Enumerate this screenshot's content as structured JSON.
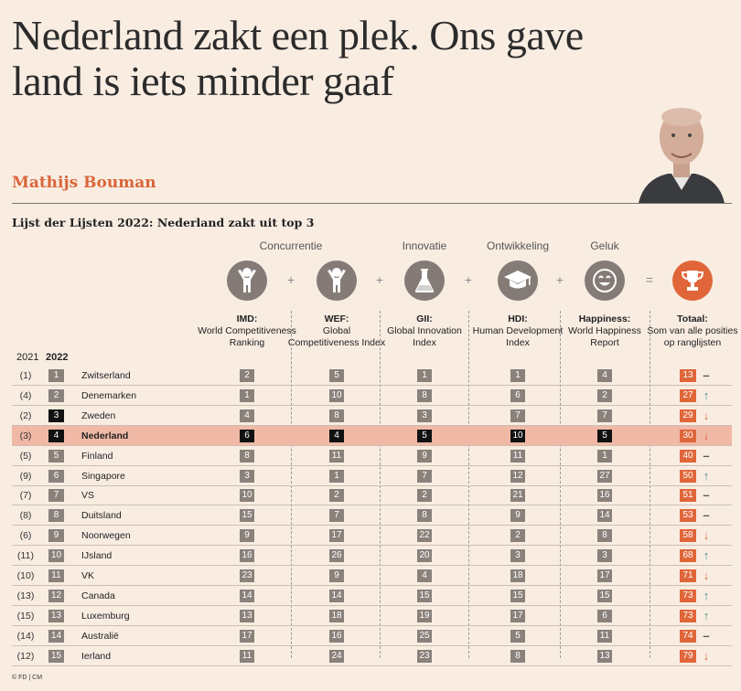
{
  "headline": "Nederland zakt een plek. Ons gave land is iets minder gaaf",
  "author": "Mathijs Bouman",
  "source": "© FD | CM",
  "chart_data": {
    "type": "table",
    "title": "Lijst der Lijsten 2022: Nederland zakt uit top 3",
    "categories": [
      "Concurrentie",
      "Innovatie",
      "Ontwikkeling",
      "Geluk"
    ],
    "operators": [
      "+",
      "+",
      "+",
      "+",
      "="
    ],
    "year_labels": [
      "2021",
      "2022"
    ],
    "columns": [
      {
        "key": "imd",
        "name": "IMD:",
        "desc": "World Competitiveness Ranking",
        "icon": "person-icon"
      },
      {
        "key": "wef",
        "name": "WEF:",
        "desc": "Global Competitiveness Index",
        "icon": "person-icon"
      },
      {
        "key": "gii",
        "name": "GII:",
        "desc": "Global Innovation Index",
        "icon": "flask-icon"
      },
      {
        "key": "hdi",
        "name": "HDI:",
        "desc": "Human Development Index",
        "icon": "graduation-cap-icon"
      },
      {
        "key": "happiness",
        "name": "Happiness:",
        "desc": "World Happiness Report",
        "icon": "smiley-icon"
      },
      {
        "key": "total",
        "name": "Totaal:",
        "desc": "Som van alle posities op ranglijsten",
        "icon": "trophy-icon"
      }
    ],
    "rows": [
      {
        "prev": "(1)",
        "rank": "1",
        "country": "Zwitserland",
        "imd": "2",
        "wef": "5",
        "gii": "1",
        "hdi": "1",
        "happiness": "4",
        "total": "13",
        "trend": "same"
      },
      {
        "prev": "(4)",
        "rank": "2",
        "country": "Denemarken",
        "imd": "1",
        "wef": "10",
        "gii": "8",
        "hdi": "6",
        "happiness": "2",
        "total": "27",
        "trend": "up"
      },
      {
        "prev": "(2)",
        "rank": "3",
        "country": "Zweden",
        "imd": "4",
        "wef": "8",
        "gii": "3",
        "hdi": "7",
        "happiness": "7",
        "total": "29",
        "trend": "down"
      },
      {
        "prev": "(3)",
        "rank": "4",
        "country": "Nederland",
        "imd": "6",
        "wef": "4",
        "gii": "5",
        "hdi": "10",
        "happiness": "5",
        "total": "30",
        "trend": "down",
        "highlight": true
      },
      {
        "prev": "(5)",
        "rank": "5",
        "country": "Finland",
        "imd": "8",
        "wef": "11",
        "gii": "9",
        "hdi": "11",
        "happiness": "1",
        "total": "40",
        "trend": "same"
      },
      {
        "prev": "(9)",
        "rank": "6",
        "country": "Singapore",
        "imd": "3",
        "wef": "1",
        "gii": "7",
        "hdi": "12",
        "happiness": "27",
        "total": "50",
        "trend": "up"
      },
      {
        "prev": "(7)",
        "rank": "7",
        "country": "VS",
        "imd": "10",
        "wef": "2",
        "gii": "2",
        "hdi": "21",
        "happiness": "16",
        "total": "51",
        "trend": "same"
      },
      {
        "prev": "(8)",
        "rank": "8",
        "country": "Duitsland",
        "imd": "15",
        "wef": "7",
        "gii": "8",
        "hdi": "9",
        "happiness": "14",
        "total": "53",
        "trend": "same"
      },
      {
        "prev": "(6)",
        "rank": "9",
        "country": "Noorwegen",
        "imd": "9",
        "wef": "17",
        "gii": "22",
        "hdi": "2",
        "happiness": "8",
        "total": "58",
        "trend": "down"
      },
      {
        "prev": "(11)",
        "rank": "10",
        "country": "IJsland",
        "imd": "16",
        "wef": "26",
        "gii": "20",
        "hdi": "3",
        "happiness": "3",
        "total": "68",
        "trend": "up"
      },
      {
        "prev": "(10)",
        "rank": "11",
        "country": "VK",
        "imd": "23",
        "wef": "9",
        "gii": "4",
        "hdi": "18",
        "happiness": "17",
        "total": "71",
        "trend": "down"
      },
      {
        "prev": "(13)",
        "rank": "12",
        "country": "Canada",
        "imd": "14",
        "wef": "14",
        "gii": "15",
        "hdi": "15",
        "happiness": "15",
        "total": "73",
        "trend": "up"
      },
      {
        "prev": "(15)",
        "rank": "13",
        "country": "Luxemburg",
        "imd": "13",
        "wef": "18",
        "gii": "19",
        "hdi": "17",
        "happiness": "6",
        "total": "73",
        "trend": "up"
      },
      {
        "prev": "(14)",
        "rank": "14",
        "country": "Australië",
        "imd": "17",
        "wef": "16",
        "gii": "25",
        "hdi": "5",
        "happiness": "11",
        "total": "74",
        "trend": "same"
      },
      {
        "prev": "(12)",
        "rank": "15",
        "country": "Ierland",
        "imd": "11",
        "wef": "24",
        "gii": "23",
        "hdi": "8",
        "happiness": "13",
        "total": "79",
        "trend": "down"
      }
    ]
  },
  "colors": {
    "accent": "#e0663a",
    "up": "#4a8f87",
    "neutral": "#8a817b",
    "highlight": "#f0b9a6"
  }
}
